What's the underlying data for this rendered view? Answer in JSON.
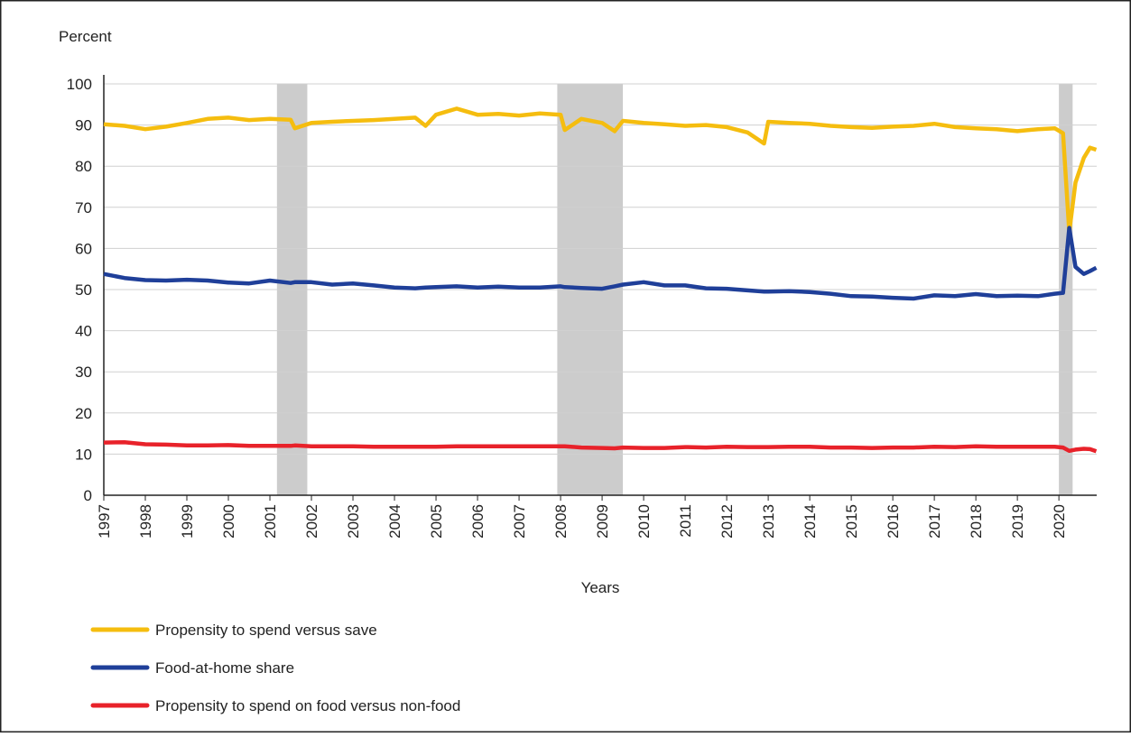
{
  "chart_data": {
    "type": "line",
    "y_label": "Percent",
    "x_label": "Years",
    "x": [
      1997,
      1997.5,
      1998,
      1998.5,
      1999,
      1999.5,
      2000,
      2000.5,
      2001,
      2001.5,
      2001.6,
      2002,
      2002.5,
      2003,
      2003.5,
      2004,
      2004.5,
      2004.75,
      2005,
      2005.5,
      2006,
      2006.5,
      2007,
      2007.5,
      2008,
      2008.1,
      2008.5,
      2009,
      2009.3,
      2009.5,
      2010,
      2010.5,
      2011,
      2011.5,
      2012,
      2012.5,
      2012.9,
      2013,
      2013.5,
      2014,
      2014.5,
      2015,
      2015.5,
      2016,
      2016.5,
      2017,
      2017.5,
      2018,
      2018.5,
      2019,
      2019.5,
      2019.9,
      2020.1,
      2020.25,
      2020.4,
      2020.6,
      2020.75,
      2020.9
    ],
    "series": [
      {
        "name": "Propensity to spend versus save",
        "color": "#f5bd0f",
        "values": [
          90.2,
          89.8,
          89,
          89.6,
          90.5,
          91.5,
          91.8,
          91.2,
          91.5,
          91.3,
          89.2,
          90.5,
          90.8,
          91,
          91.2,
          91.5,
          91.8,
          89.8,
          92.5,
          94,
          92.5,
          92.7,
          92.3,
          92.8,
          92.5,
          88.8,
          91.5,
          90.5,
          88.5,
          91,
          90.5,
          90.2,
          89.8,
          90,
          89.5,
          88.2,
          85.5,
          90.8,
          90.5,
          90.3,
          89.8,
          89.5,
          89.3,
          89.6,
          89.8,
          90.3,
          89.5,
          89.2,
          89,
          88.5,
          89,
          89.2,
          88,
          64,
          76,
          82,
          84.5,
          84
        ]
      },
      {
        "name": "Food-at-home share",
        "color": "#1f3f99",
        "values": [
          53.8,
          52.8,
          52.3,
          52.2,
          52.4,
          52.2,
          51.7,
          51.5,
          52.2,
          51.6,
          51.8,
          51.8,
          51.2,
          51.5,
          51,
          50.5,
          50.3,
          50.5,
          50.6,
          50.8,
          50.5,
          50.7,
          50.5,
          50.5,
          50.8,
          50.6,
          50.4,
          50.2,
          50.8,
          51.2,
          51.8,
          51,
          51,
          50.3,
          50.2,
          49.8,
          49.5,
          49.5,
          49.6,
          49.4,
          49,
          48.4,
          48.3,
          48,
          47.8,
          48.6,
          48.4,
          48.9,
          48.4,
          48.5,
          48.4,
          49,
          49.2,
          65,
          55.5,
          53.8,
          54.5,
          55.3
        ]
      },
      {
        "name": "Propensity to spend on food versus non-food",
        "color": "#e8222a",
        "values": [
          12.8,
          12.9,
          12.4,
          12.3,
          12.1,
          12.1,
          12.2,
          12,
          12,
          12,
          12.1,
          11.9,
          11.9,
          11.9,
          11.8,
          11.8,
          11.8,
          11.8,
          11.8,
          11.9,
          11.9,
          11.9,
          11.9,
          11.9,
          11.9,
          11.9,
          11.6,
          11.5,
          11.4,
          11.6,
          11.5,
          11.5,
          11.7,
          11.6,
          11.8,
          11.7,
          11.7,
          11.7,
          11.8,
          11.8,
          11.6,
          11.6,
          11.5,
          11.6,
          11.6,
          11.8,
          11.7,
          11.9,
          11.8,
          11.8,
          11.8,
          11.8,
          11.6,
          10.8,
          11.1,
          11.3,
          11.2,
          10.7
        ]
      }
    ],
    "recessions": [
      [
        2001.17,
        2001.9
      ],
      [
        2007.92,
        2009.5
      ],
      [
        2020.0,
        2020.33
      ]
    ],
    "recession_color": "#cccccc",
    "xlim": [
      1997,
      2020.91
    ],
    "xticks": [
      1997,
      1998,
      1999,
      2000,
      2001,
      2002,
      2003,
      2004,
      2005,
      2006,
      2007,
      2008,
      2009,
      2010,
      2011,
      2012,
      2013,
      2014,
      2015,
      2016,
      2017,
      2018,
      2019,
      2020
    ],
    "ylim": [
      0,
      100
    ],
    "yticks": [
      0,
      10,
      20,
      30,
      40,
      50,
      60,
      70,
      80,
      90,
      100
    ],
    "grid": true
  }
}
